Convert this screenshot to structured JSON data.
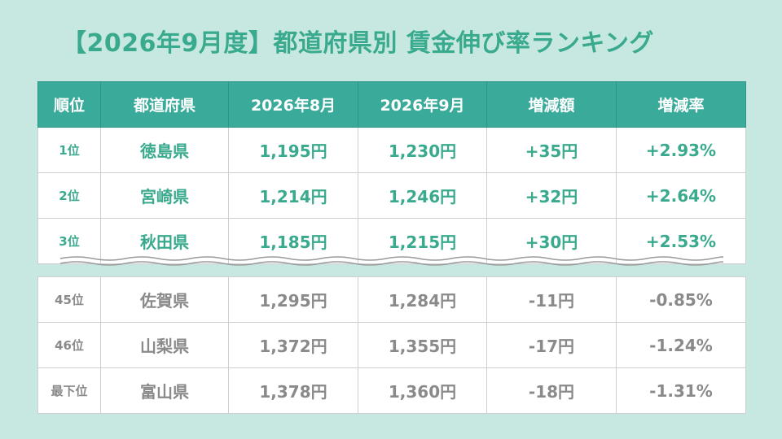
{
  "title": "【2026年9月度】都道府県別 賃金伸び率ランキング",
  "headers": [
    "順位",
    "都道府県",
    "2026年8月",
    "2026年9月",
    "増減額",
    "増減率"
  ],
  "top_rows": [
    {
      "rank": "1位",
      "prefecture": "徳島県",
      "aug": "1,195円",
      "sep": "1,230円",
      "diff": "+35円",
      "rate": "+2.93%"
    },
    {
      "rank": "2位",
      "prefecture": "宮崎県",
      "aug": "1,214円",
      "sep": "1,246円",
      "diff": "+32円",
      "rate": "+2.64%"
    },
    {
      "rank": "3位",
      "prefecture": "秋田県",
      "aug": "1,185円",
      "sep": "1,215円",
      "diff": "+30円",
      "rate": "+2.53%"
    }
  ],
  "bottom_rows": [
    {
      "rank": "45位",
      "prefecture": "佐賀県",
      "aug": "1,295円",
      "sep": "1,284円",
      "diff": "-11円",
      "rate": "-0.85%"
    },
    {
      "rank": "46位",
      "prefecture": "山梨県",
      "aug": "1,372円",
      "sep": "1,355円",
      "diff": "-17円",
      "rate": "-1.24%"
    },
    {
      "rank": "最下位",
      "prefecture": "富山県",
      "aug": "1,378円",
      "sep": "1,360円",
      "diff": "-18円",
      "rate": "-1.31%"
    }
  ],
  "colors": {
    "background": "#c7e8e1",
    "header": "#3aaa9b",
    "accent_text": "#3aaa8e",
    "muted_text": "#8a8a8a"
  }
}
